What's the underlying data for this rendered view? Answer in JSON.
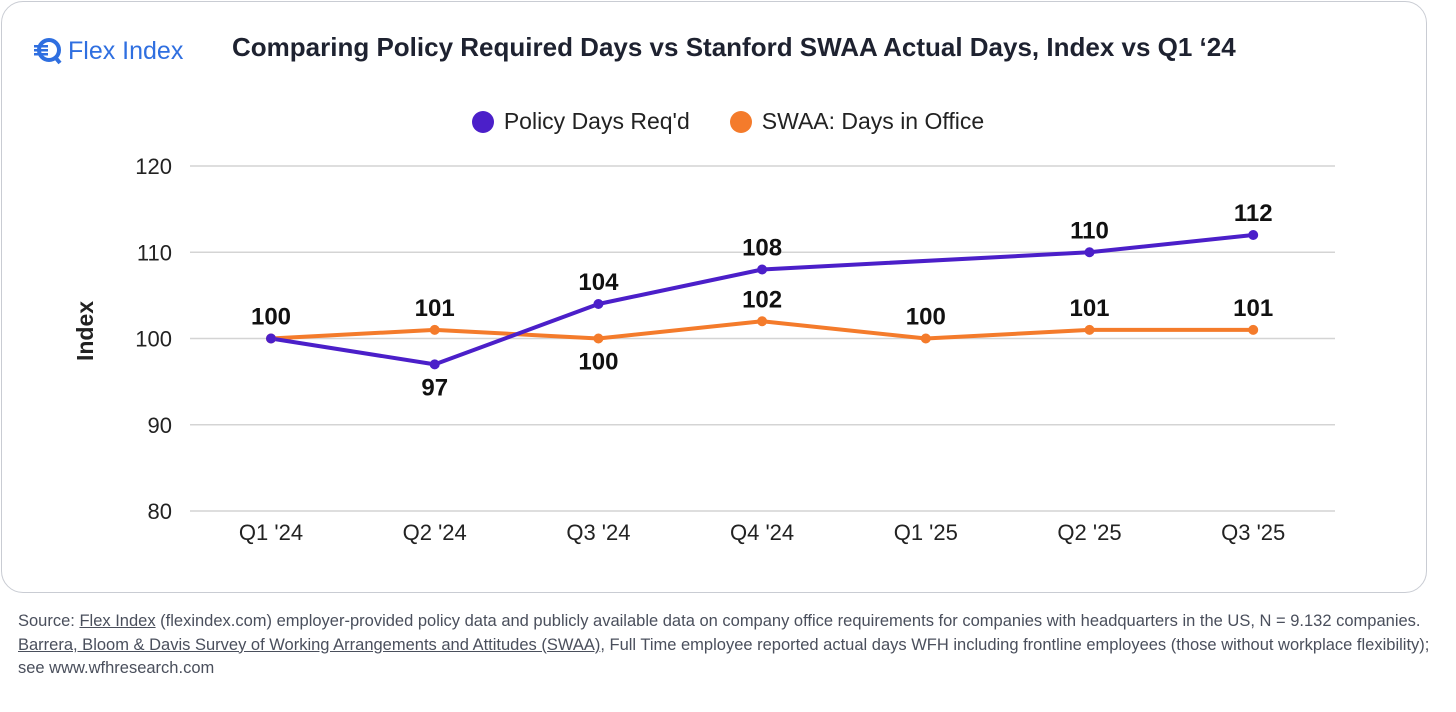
{
  "brand": {
    "name": "Flex Index",
    "color": "#2f6fe0"
  },
  "chart_data": {
    "type": "line",
    "title": "Comparing Policy Required Days vs Stanford SWAA Actual Days, Index vs Q1 ‘24",
    "xlabel": "",
    "ylabel": "Index",
    "categories": [
      "Q1 '24",
      "Q2 '24",
      "Q3 '24",
      "Q4 '24",
      "Q1 '25",
      "Q2 '25",
      "Q3 '25"
    ],
    "yticks": [
      "80",
      "90",
      "100",
      "110",
      "120"
    ],
    "ylim": [
      80,
      120
    ],
    "grid": true,
    "legend_position": "top-center",
    "series": [
      {
        "name": "Policy Days Req'd",
        "color": "#4b1fc9",
        "values": [
          100,
          97,
          104,
          108,
          null,
          110,
          112
        ],
        "labels": [
          "",
          "97",
          "104",
          "108",
          "",
          "110",
          "112"
        ]
      },
      {
        "name": "SWAA: Days in Office",
        "color": "#f47b2b",
        "values": [
          100,
          101,
          100,
          102,
          100,
          101,
          101
        ],
        "labels": [
          "100",
          "101",
          "100",
          "102",
          "100",
          "101",
          "101"
        ]
      }
    ]
  },
  "footer": {
    "source_prefix": "Source: ",
    "link1": "Flex Index",
    "text1": " (flexindex.com) employer-provided policy data and publicly available data on company office requirements for companies with headquarters in the US, N = 9.132 companies.",
    "link2": " Barrera, Bloom & Davis Survey of Working Arrangements and Attitudes (SWAA)",
    "text2": ", Full Time employee reported actual days WFH including frontline employees (those without workplace flexibility); see www.wfhresearch.com"
  }
}
